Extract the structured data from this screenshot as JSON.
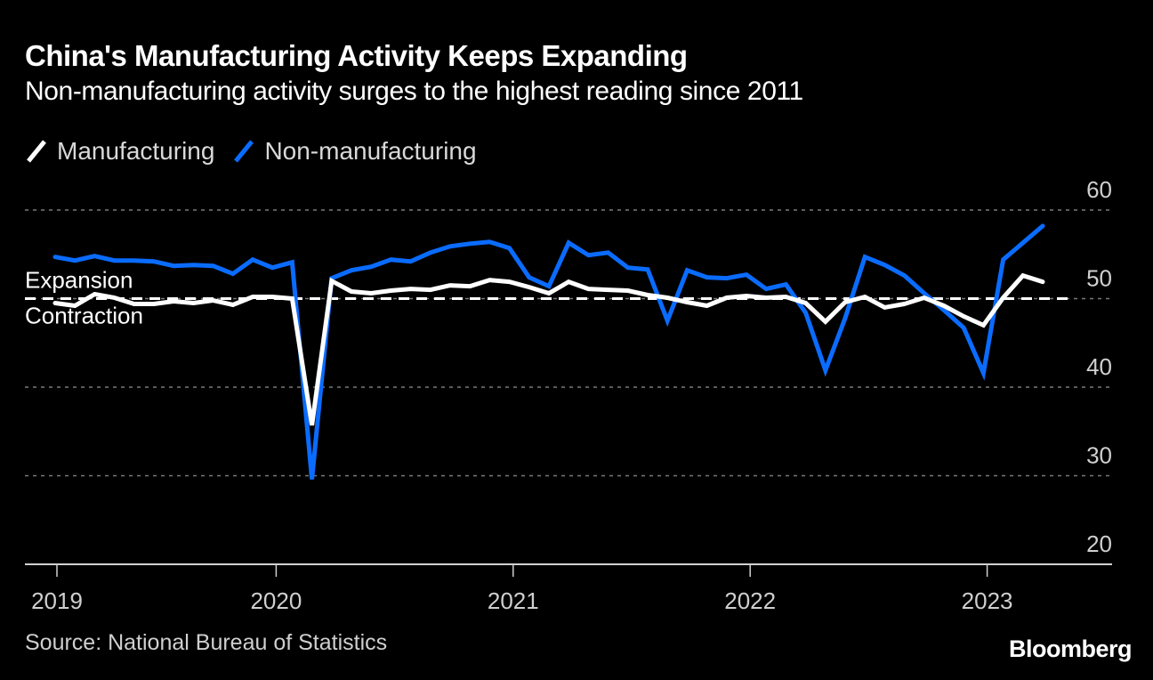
{
  "header": {
    "title": "China's Manufacturing Activity Keeps Expanding",
    "subtitle": "Non-manufacturing activity surges to the highest reading since 2011"
  },
  "legend": [
    {
      "label": "Manufacturing",
      "color": "#ffffff"
    },
    {
      "label": "Non-manufacturing",
      "color": "#0a6cff"
    }
  ],
  "footer": {
    "source": "Source: National Bureau of Statistics",
    "brand": "Bloomberg"
  },
  "chart_data": {
    "type": "line",
    "title": "China's Manufacturing Activity Keeps Expanding",
    "subtitle": "Non-manufacturing activity surges to the highest reading since 2011",
    "xlabel": "",
    "ylabel": "",
    "ylim": [
      20,
      60
    ],
    "yticks": [
      60,
      50,
      40,
      30,
      20
    ],
    "y_axis_side": "right",
    "grid": true,
    "legend_position": "top-left",
    "x_start": "2019-01",
    "x_end": "2023-03",
    "x_tick_labels": [
      "2019",
      "2020",
      "2021",
      "2022",
      "2023"
    ],
    "threshold": {
      "value": 50,
      "label_above": "Expansion",
      "label_below": "Contraction"
    },
    "x": [
      "2019-01",
      "2019-02",
      "2019-03",
      "2019-04",
      "2019-05",
      "2019-06",
      "2019-07",
      "2019-08",
      "2019-09",
      "2019-10",
      "2019-11",
      "2019-12",
      "2020-01",
      "2020-02",
      "2020-03",
      "2020-04",
      "2020-05",
      "2020-06",
      "2020-07",
      "2020-08",
      "2020-09",
      "2020-10",
      "2020-11",
      "2020-12",
      "2021-01",
      "2021-02",
      "2021-03",
      "2021-04",
      "2021-05",
      "2021-06",
      "2021-07",
      "2021-08",
      "2021-09",
      "2021-10",
      "2021-11",
      "2021-12",
      "2022-01",
      "2022-02",
      "2022-03",
      "2022-04",
      "2022-05",
      "2022-06",
      "2022-07",
      "2022-08",
      "2022-09",
      "2022-10",
      "2022-11",
      "2022-12",
      "2023-01",
      "2023-02",
      "2023-03"
    ],
    "series": [
      {
        "name": "Manufacturing",
        "color": "#ffffff",
        "values": [
          49.5,
          49.2,
          50.5,
          50.1,
          49.4,
          49.4,
          49.7,
          49.5,
          49.8,
          49.3,
          50.2,
          50.2,
          50.0,
          35.7,
          52.0,
          50.8,
          50.6,
          50.9,
          51.1,
          51.0,
          51.5,
          51.4,
          52.1,
          51.9,
          51.3,
          50.6,
          51.9,
          51.1,
          51.0,
          50.9,
          50.4,
          50.1,
          49.6,
          49.2,
          50.1,
          50.3,
          50.1,
          50.2,
          49.5,
          47.4,
          49.6,
          50.2,
          49.0,
          49.4,
          50.1,
          49.2,
          48.0,
          47.0,
          50.1,
          52.6,
          51.9
        ]
      },
      {
        "name": "Non-manufacturing",
        "color": "#0a6cff",
        "values": [
          54.7,
          54.3,
          54.8,
          54.3,
          54.3,
          54.2,
          53.7,
          53.8,
          53.7,
          52.8,
          54.4,
          53.5,
          54.1,
          29.6,
          52.3,
          53.2,
          53.6,
          54.4,
          54.2,
          55.2,
          55.9,
          56.2,
          56.4,
          55.7,
          52.4,
          51.4,
          56.3,
          54.9,
          55.2,
          53.5,
          53.3,
          47.5,
          53.2,
          52.4,
          52.3,
          52.7,
          51.1,
          51.6,
          48.4,
          41.9,
          47.8,
          54.7,
          53.8,
          52.6,
          50.6,
          48.7,
          46.7,
          41.6,
          54.4,
          56.3,
          58.2
        ]
      }
    ]
  }
}
